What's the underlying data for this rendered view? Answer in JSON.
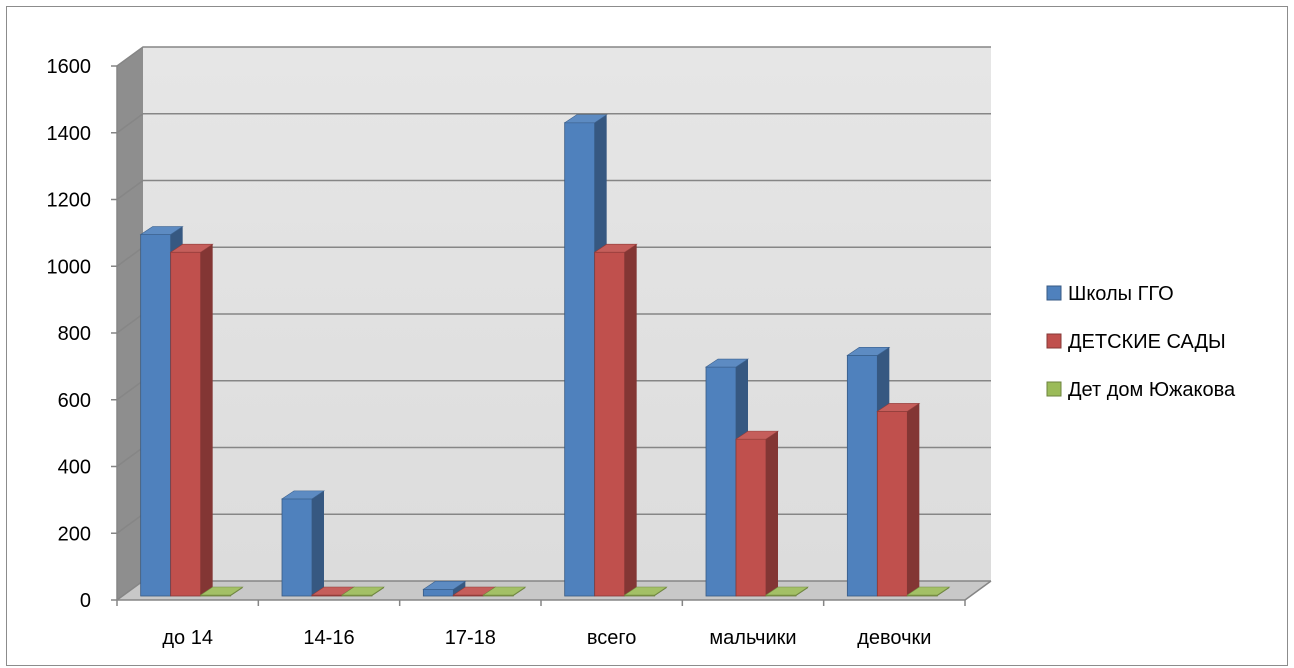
{
  "chart_data": {
    "type": "bar",
    "title": "",
    "xlabel": "",
    "ylabel": "",
    "ylim": [
      0,
      1600
    ],
    "yticks": [
      0,
      200,
      400,
      600,
      800,
      1000,
      1200,
      1400,
      1600
    ],
    "grid": true,
    "legend_position": "right",
    "categories": [
      "до 14",
      "14-16",
      "17-18",
      "всего",
      "мальчики",
      "девочки"
    ],
    "series": [
      {
        "name": "Школы ГГО",
        "color": "#4f81bd",
        "values": [
          1095,
          303,
          32,
          1430,
          698,
          733
        ]
      },
      {
        "name": "ДЕТСКИЕ САДЫ",
        "color": "#c0504d",
        "values": [
          1042,
          3,
          2,
          1042,
          482,
          565
        ]
      },
      {
        "name": "Дет дом Южакова",
        "color": "#9bbb59",
        "values": [
          3,
          10,
          3,
          12,
          3,
          7
        ]
      }
    ]
  }
}
